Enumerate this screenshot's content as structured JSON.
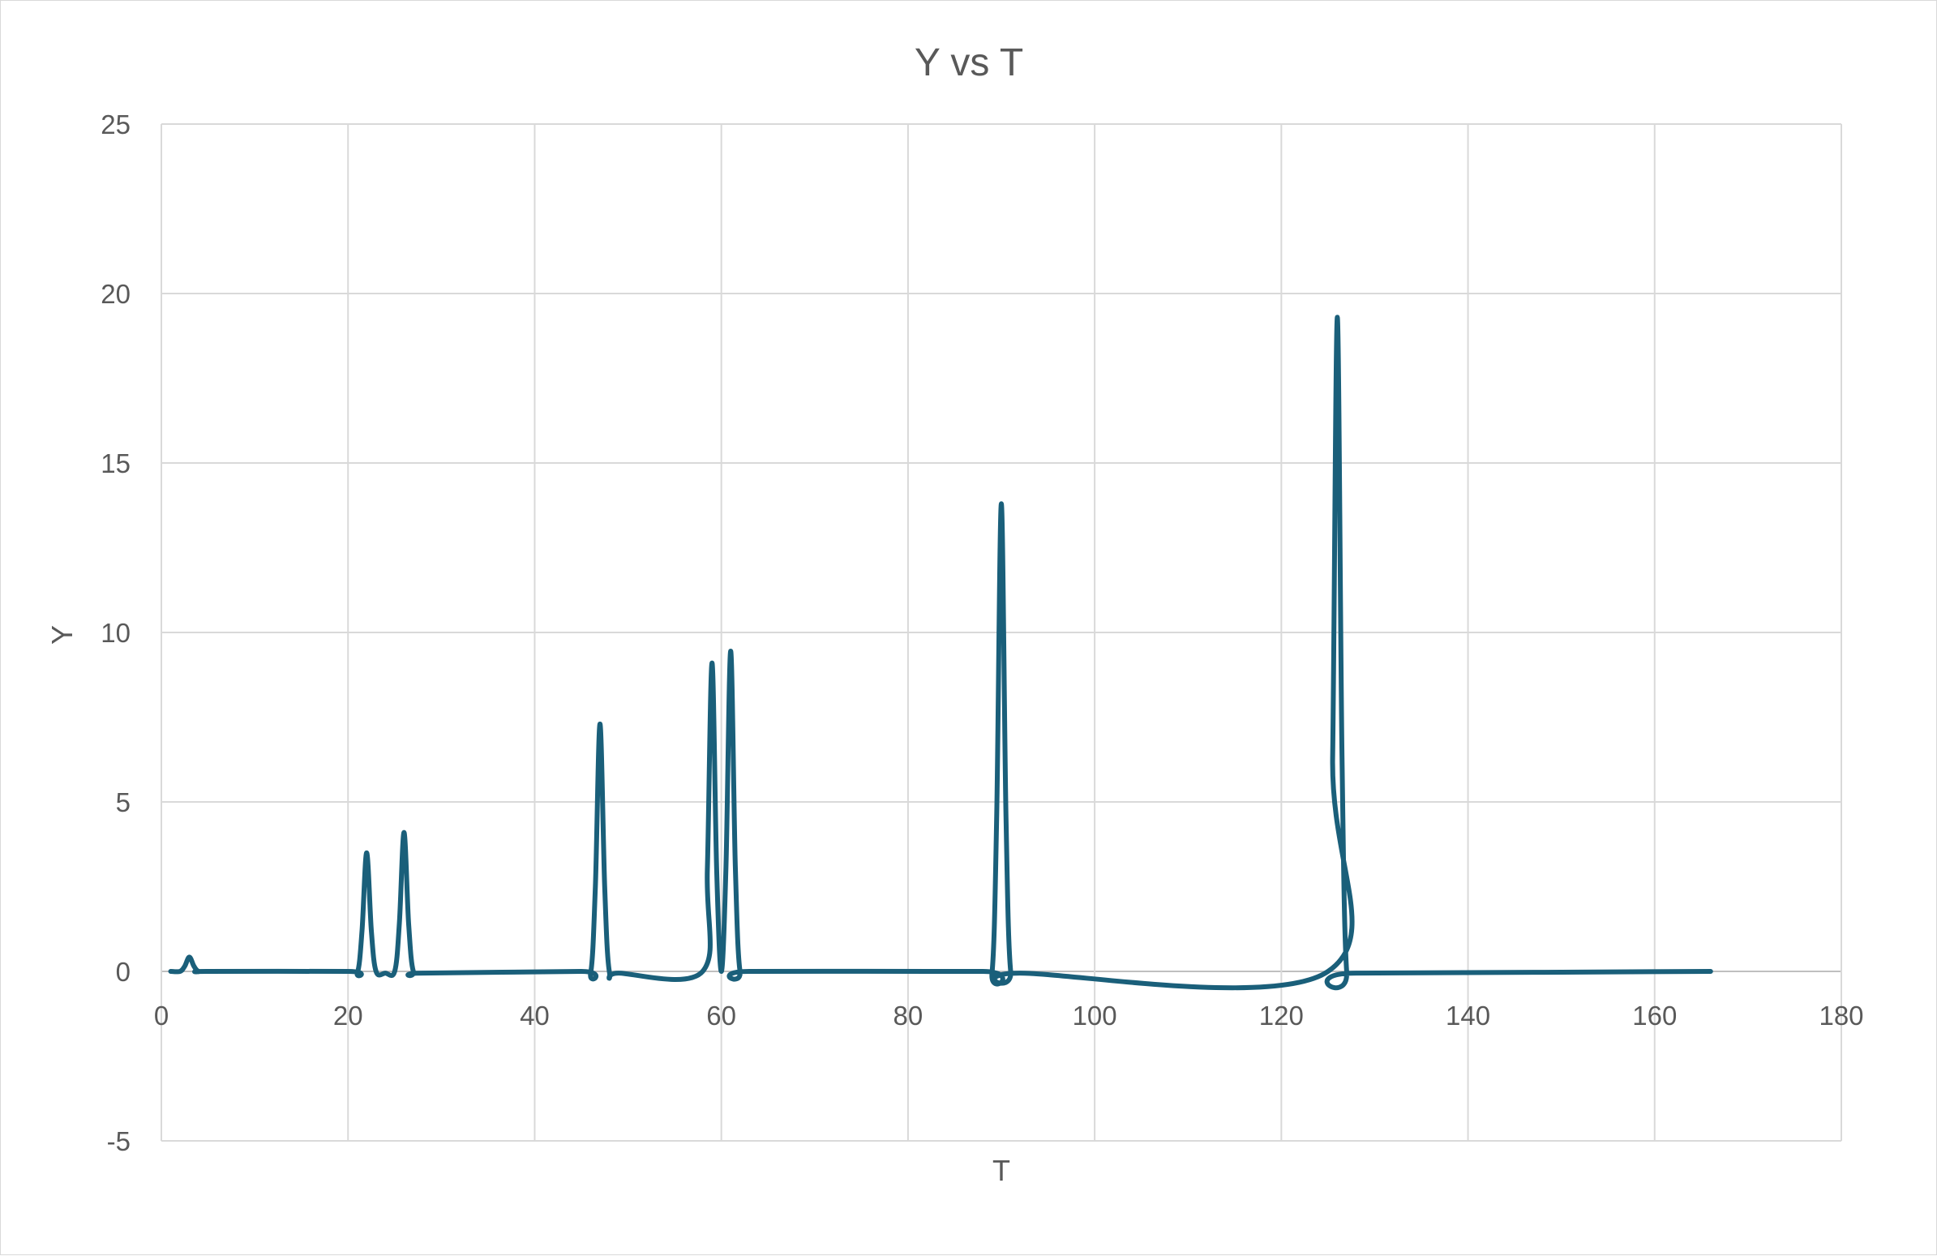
{
  "chart_data": {
    "type": "line",
    "title": "Y vs T",
    "xlabel": "T",
    "ylabel": "Y",
    "xlim": [
      0,
      180
    ],
    "ylim": [
      -5,
      25
    ],
    "x_ticks": [
      "0",
      "20",
      "40",
      "60",
      "80",
      "100",
      "120",
      "140",
      "160",
      "180"
    ],
    "y_ticks": [
      "-5",
      "0",
      "5",
      "10",
      "15",
      "20",
      "25"
    ],
    "grid": true,
    "legend": "none",
    "colors": {
      "series": "#1a5f7a",
      "grid": "#d9d9d9",
      "text": "#595959"
    },
    "series": [
      {
        "x": [
          1,
          2,
          2.5,
          3,
          3.5,
          4,
          5,
          20,
          21,
          21.5,
          22,
          22.5,
          23,
          24,
          25,
          25.5,
          26,
          26.5,
          27,
          28,
          45,
          46,
          46.5,
          47,
          47.5,
          48,
          49,
          58,
          58.5,
          59,
          59.5,
          60,
          60.5,
          61,
          61.5,
          62,
          63,
          88,
          89,
          89.5,
          90,
          90.5,
          91,
          92,
          125,
          125.5,
          126,
          126.5,
          127,
          128,
          166
        ],
        "y": [
          0,
          0,
          0.15,
          0.42,
          0.15,
          0,
          0,
          0,
          -0.05,
          1.2,
          3.5,
          1.2,
          0,
          -0.05,
          0,
          1.4,
          4.1,
          1.4,
          0,
          -0.05,
          0,
          -0.05,
          2.5,
          7.3,
          2.5,
          0,
          -0.05,
          0,
          3.0,
          9.1,
          3.0,
          0,
          3.1,
          9.45,
          3.1,
          0,
          0,
          0,
          -0.05,
          4.5,
          13.8,
          4.5,
          0,
          -0.05,
          0,
          6.3,
          19.3,
          6.3,
          0,
          -0.05,
          0
        ]
      }
    ]
  }
}
